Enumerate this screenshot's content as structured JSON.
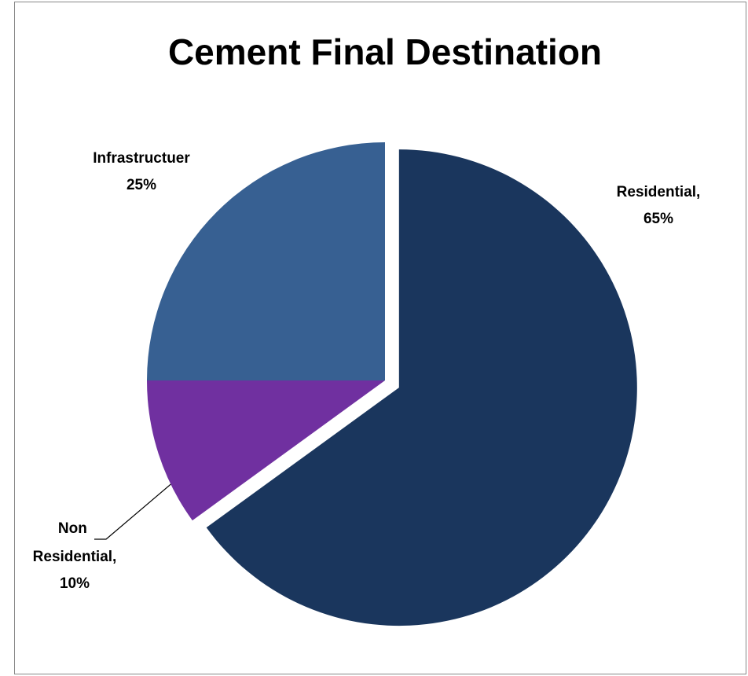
{
  "chart_data": {
    "type": "pie",
    "title": "Cement Final Destination",
    "categories": [
      "Residential,",
      "Non Residential,",
      "Infrastructuer"
    ],
    "values": [
      65,
      10,
      25
    ],
    "value_labels": [
      "65%",
      "10%",
      "25%"
    ],
    "colors": [
      "#1a365d",
      "#7030a0",
      "#376092"
    ]
  }
}
